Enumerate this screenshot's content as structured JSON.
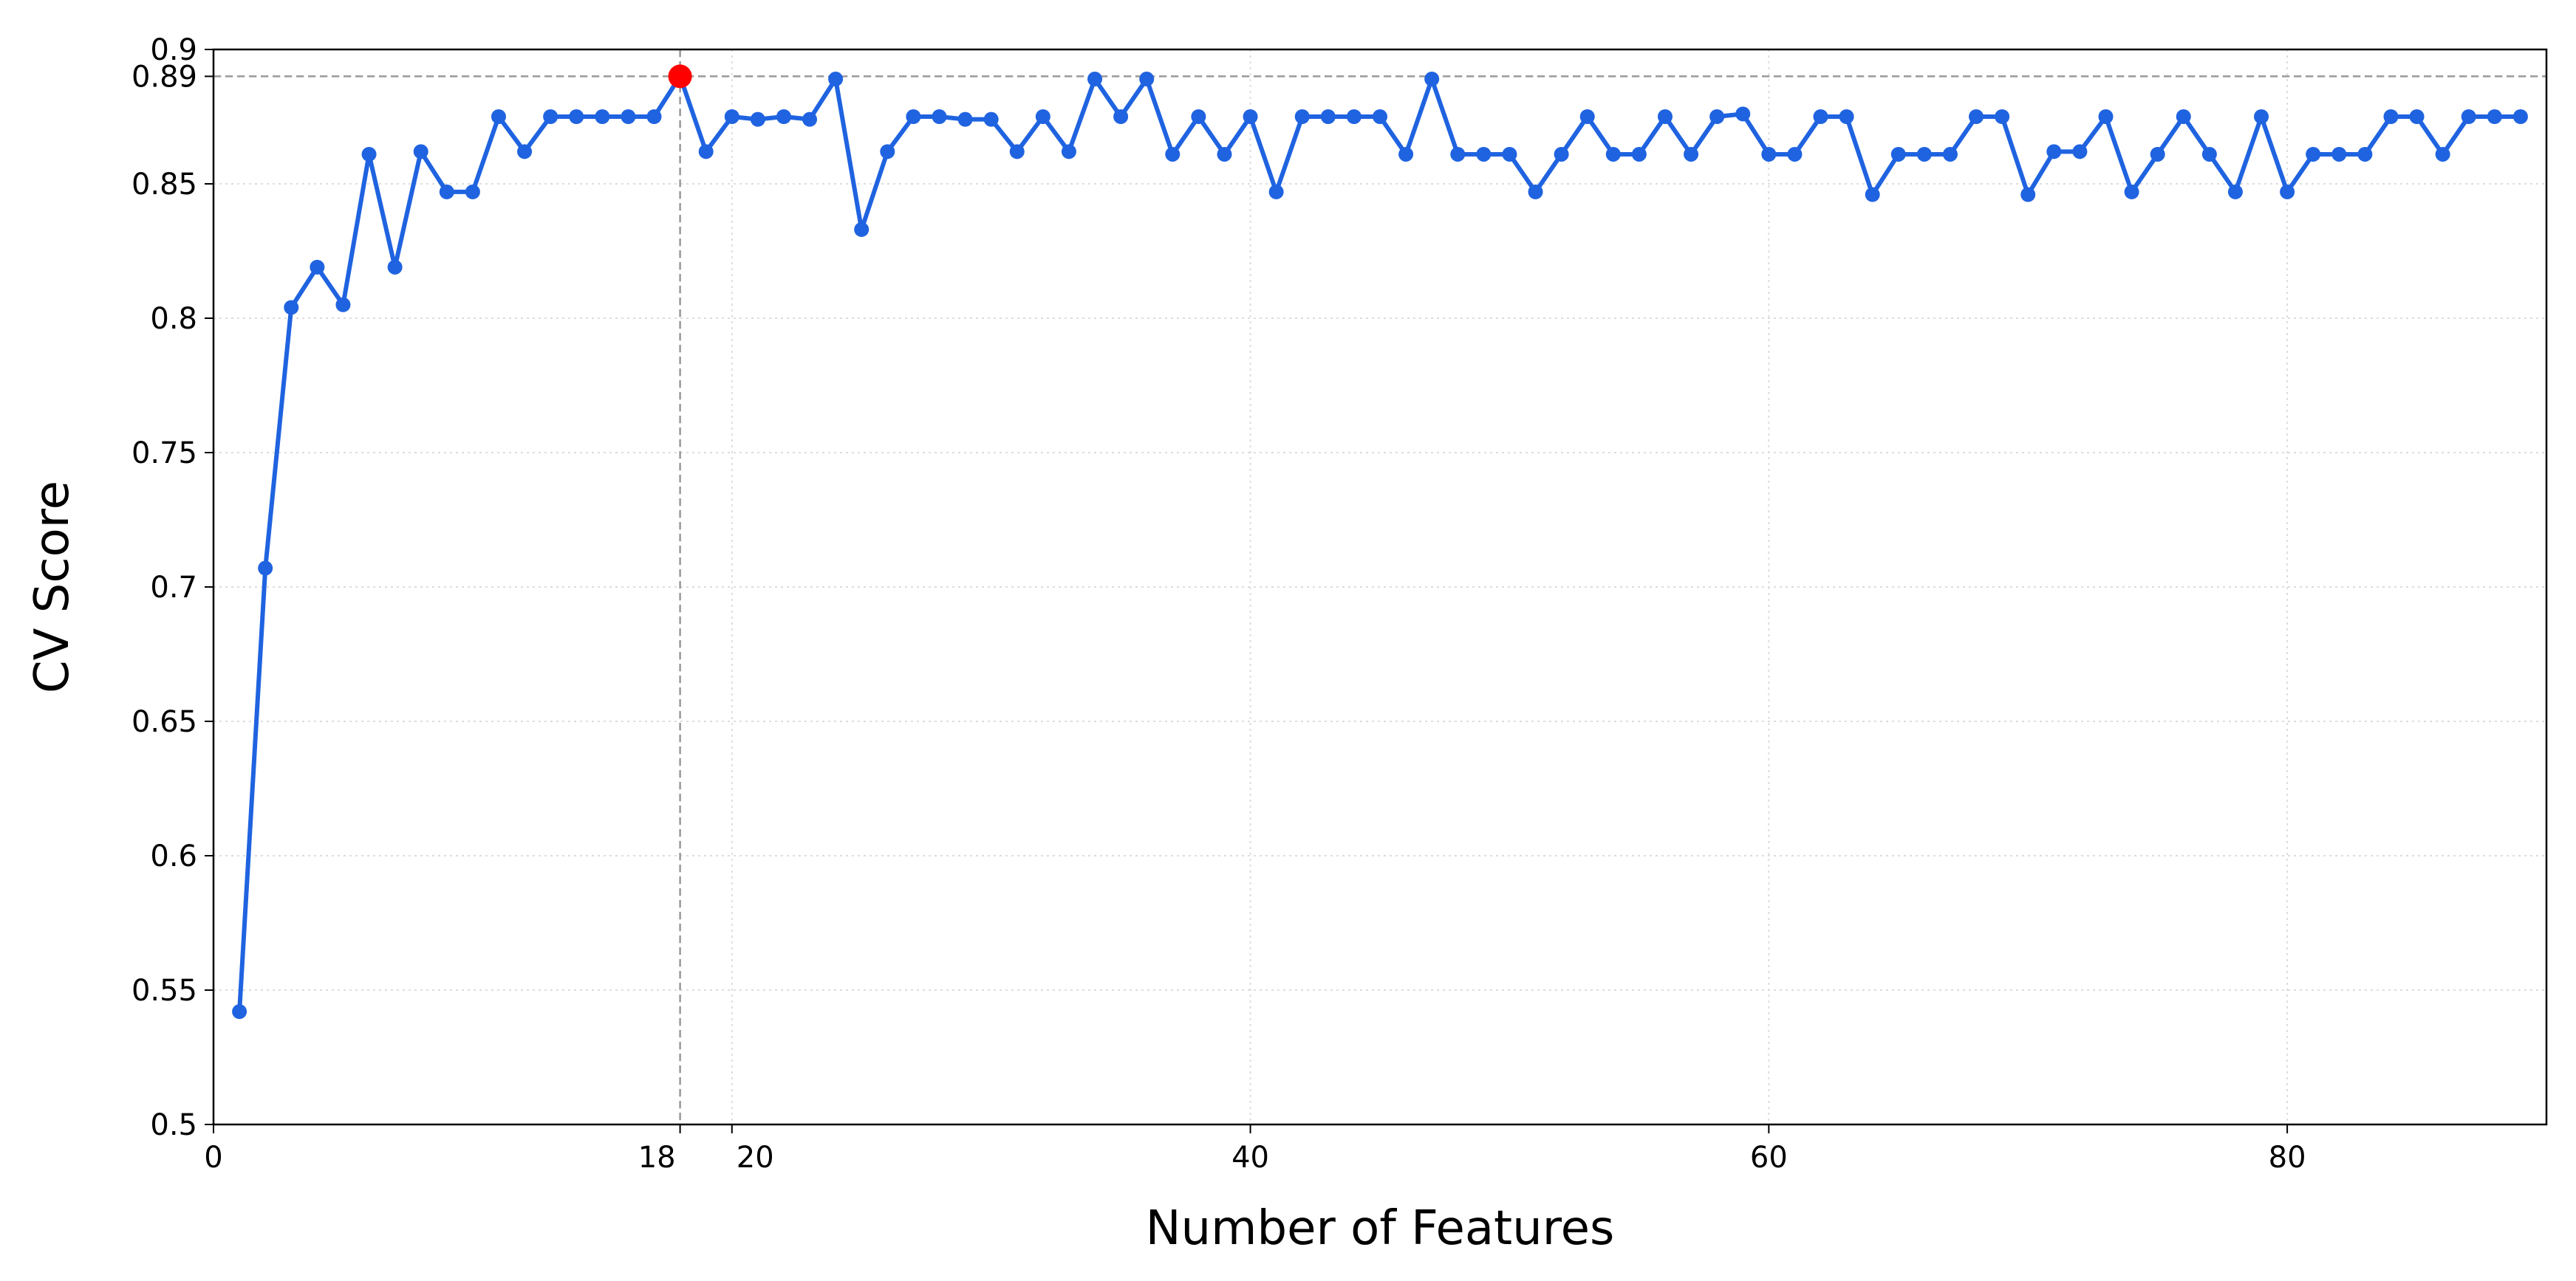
{
  "chart_data": {
    "type": "line",
    "xlabel": "Number of Features",
    "ylabel": "CV Score",
    "x": [
      1,
      2,
      3,
      4,
      5,
      6,
      7,
      8,
      9,
      10,
      11,
      12,
      13,
      14,
      15,
      16,
      17,
      18,
      19,
      20,
      21,
      22,
      23,
      24,
      25,
      26,
      27,
      28,
      29,
      30,
      31,
      32,
      33,
      34,
      35,
      36,
      37,
      38,
      39,
      40,
      41,
      42,
      43,
      44,
      45,
      46,
      47,
      48,
      49,
      50,
      51,
      52,
      53,
      54,
      55,
      56,
      57,
      58,
      59,
      60,
      61,
      62,
      63,
      64,
      65,
      66,
      67,
      68,
      69,
      70,
      71,
      72,
      73,
      74,
      75,
      76,
      77,
      78,
      79,
      80,
      81,
      82,
      83,
      84,
      85,
      86,
      87,
      88,
      89
    ],
    "series": [
      {
        "color": "#1f63e0",
        "values": [
          0.542,
          0.707,
          0.804,
          0.819,
          0.805,
          0.861,
          0.819,
          0.862,
          0.847,
          0.847,
          0.875,
          0.862,
          0.875,
          0.875,
          0.875,
          0.875,
          0.875,
          0.89,
          0.862,
          0.875,
          0.874,
          0.875,
          0.874,
          0.889,
          0.833,
          0.862,
          0.875,
          0.875,
          0.874,
          0.874,
          0.862,
          0.875,
          0.862,
          0.889,
          0.875,
          0.889,
          0.861,
          0.875,
          0.861,
          0.875,
          0.847,
          0.875,
          0.875,
          0.875,
          0.875,
          0.861,
          0.889,
          0.861,
          0.861,
          0.861,
          0.847,
          0.861,
          0.875,
          0.861,
          0.861,
          0.875,
          0.861,
          0.875,
          0.876,
          0.861,
          0.861,
          0.875,
          0.875,
          0.846,
          0.861,
          0.861,
          0.861,
          0.875,
          0.875,
          0.846,
          0.862,
          0.862,
          0.875,
          0.847,
          0.861,
          0.875,
          0.861,
          0.847,
          0.875,
          0.847,
          0.861,
          0.861,
          0.861,
          0.875,
          0.875,
          0.861,
          0.875,
          0.875,
          0.875
        ]
      }
    ],
    "best": {
      "x": 18,
      "y": 0.89,
      "color": "#ff0000"
    },
    "xlim": [
      0,
      90
    ],
    "ylim": [
      0.5,
      0.9
    ],
    "xticks": [
      0,
      18,
      20,
      40,
      60,
      80
    ],
    "yticks": [
      0.5,
      0.55,
      0.6,
      0.65,
      0.7,
      0.75,
      0.8,
      0.85,
      0.89,
      0.9
    ],
    "grid": true
  }
}
